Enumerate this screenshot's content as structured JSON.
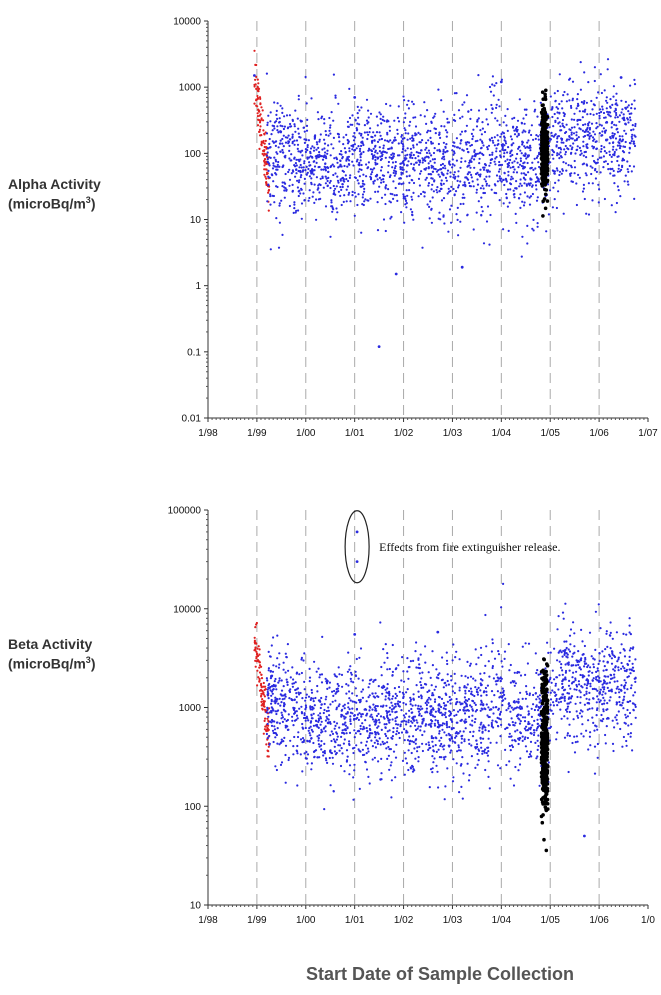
{
  "x_axis_title": "Start Date of Sample Collection",
  "chart_data": [
    {
      "type": "scatter",
      "ylabel_line1": "Alpha Activity",
      "ylabel_line2": "(microBq/m",
      "ylabel_sup": "3",
      "ylabel_end": ")",
      "yscale": "log",
      "ylim": [
        0.01,
        10000
      ],
      "ytick_labels": [
        "0.01",
        "0.1",
        "1",
        "10",
        "100",
        "1000",
        "10000"
      ],
      "xlim": [
        1998,
        2007
      ],
      "xtick_labels": [
        "1/98",
        "1/99",
        "1/00",
        "1/01",
        "1/02",
        "1/03",
        "1/04",
        "1/05",
        "1/06",
        "1/07"
      ],
      "vertical_dashed_gridlines_at": [
        "1/99",
        "1/00",
        "1/01",
        "1/02",
        "1/03",
        "1/04",
        "1/05",
        "1/06"
      ],
      "legend": "none",
      "series": [
        {
          "color": "#e02020",
          "x_range": [
            1998.95,
            1999.25
          ],
          "typical_y": [
            30,
            1500
          ]
        },
        {
          "color": "#2a2ae0",
          "x_range": [
            1999.2,
            2006.75
          ],
          "typical_y": [
            10,
            500
          ]
        },
        {
          "color": "#000000",
          "x_range": [
            2004.82,
            2004.95
          ],
          "typical_y": [
            30,
            500
          ]
        }
      ],
      "notable_points": [
        {
          "x": 1998.95,
          "y": 1500
        },
        {
          "x": 2001.0,
          "y": 700
        },
        {
          "x": 2001.5,
          "y": 0.12
        },
        {
          "x": 2001.85,
          "y": 1.5
        },
        {
          "x": 2003.2,
          "y": 1.9
        },
        {
          "x": 2004.0,
          "y": 1200
        },
        {
          "x": 2006.45,
          "y": 1400
        }
      ]
    },
    {
      "type": "scatter",
      "ylabel_line1": "Beta Activity",
      "ylabel_line2": "(microBq/m",
      "ylabel_sup": "3",
      "ylabel_end": ")",
      "yscale": "log",
      "ylim": [
        10,
        100000
      ],
      "ytick_labels": [
        "10",
        "100",
        "1000",
        "10000",
        "100000"
      ],
      "xlim": [
        1998,
        2007
      ],
      "xtick_labels": [
        "1/98",
        "1/99",
        "1/00",
        "1/01",
        "1/02",
        "1/03",
        "1/04",
        "1/05",
        "1/06",
        "1/0"
      ],
      "vertical_dashed_gridlines_at": [
        "1/99",
        "1/00",
        "1/01",
        "1/02",
        "1/03",
        "1/04",
        "1/05",
        "1/06"
      ],
      "legend": "none",
      "annotation": "Effects from fire extinguisher release.",
      "series": [
        {
          "color": "#e02020",
          "x_range": [
            1998.95,
            1999.25
          ],
          "typical_y": [
            400,
            5000
          ]
        },
        {
          "color": "#2a2ae0",
          "x_range": [
            1999.2,
            2006.75
          ],
          "typical_y": [
            200,
            3000
          ]
        },
        {
          "color": "#000000",
          "x_range": [
            2004.82,
            2004.95
          ],
          "typical_y": [
            80,
            2500
          ]
        }
      ],
      "notable_points": [
        {
          "x": 2001.05,
          "y": 60000
        },
        {
          "x": 2001.05,
          "y": 30000
        },
        {
          "x": 2001.0,
          "y": 5500
        },
        {
          "x": 2002.7,
          "y": 5800
        },
        {
          "x": 2005.7,
          "y": 50
        }
      ]
    }
  ]
}
